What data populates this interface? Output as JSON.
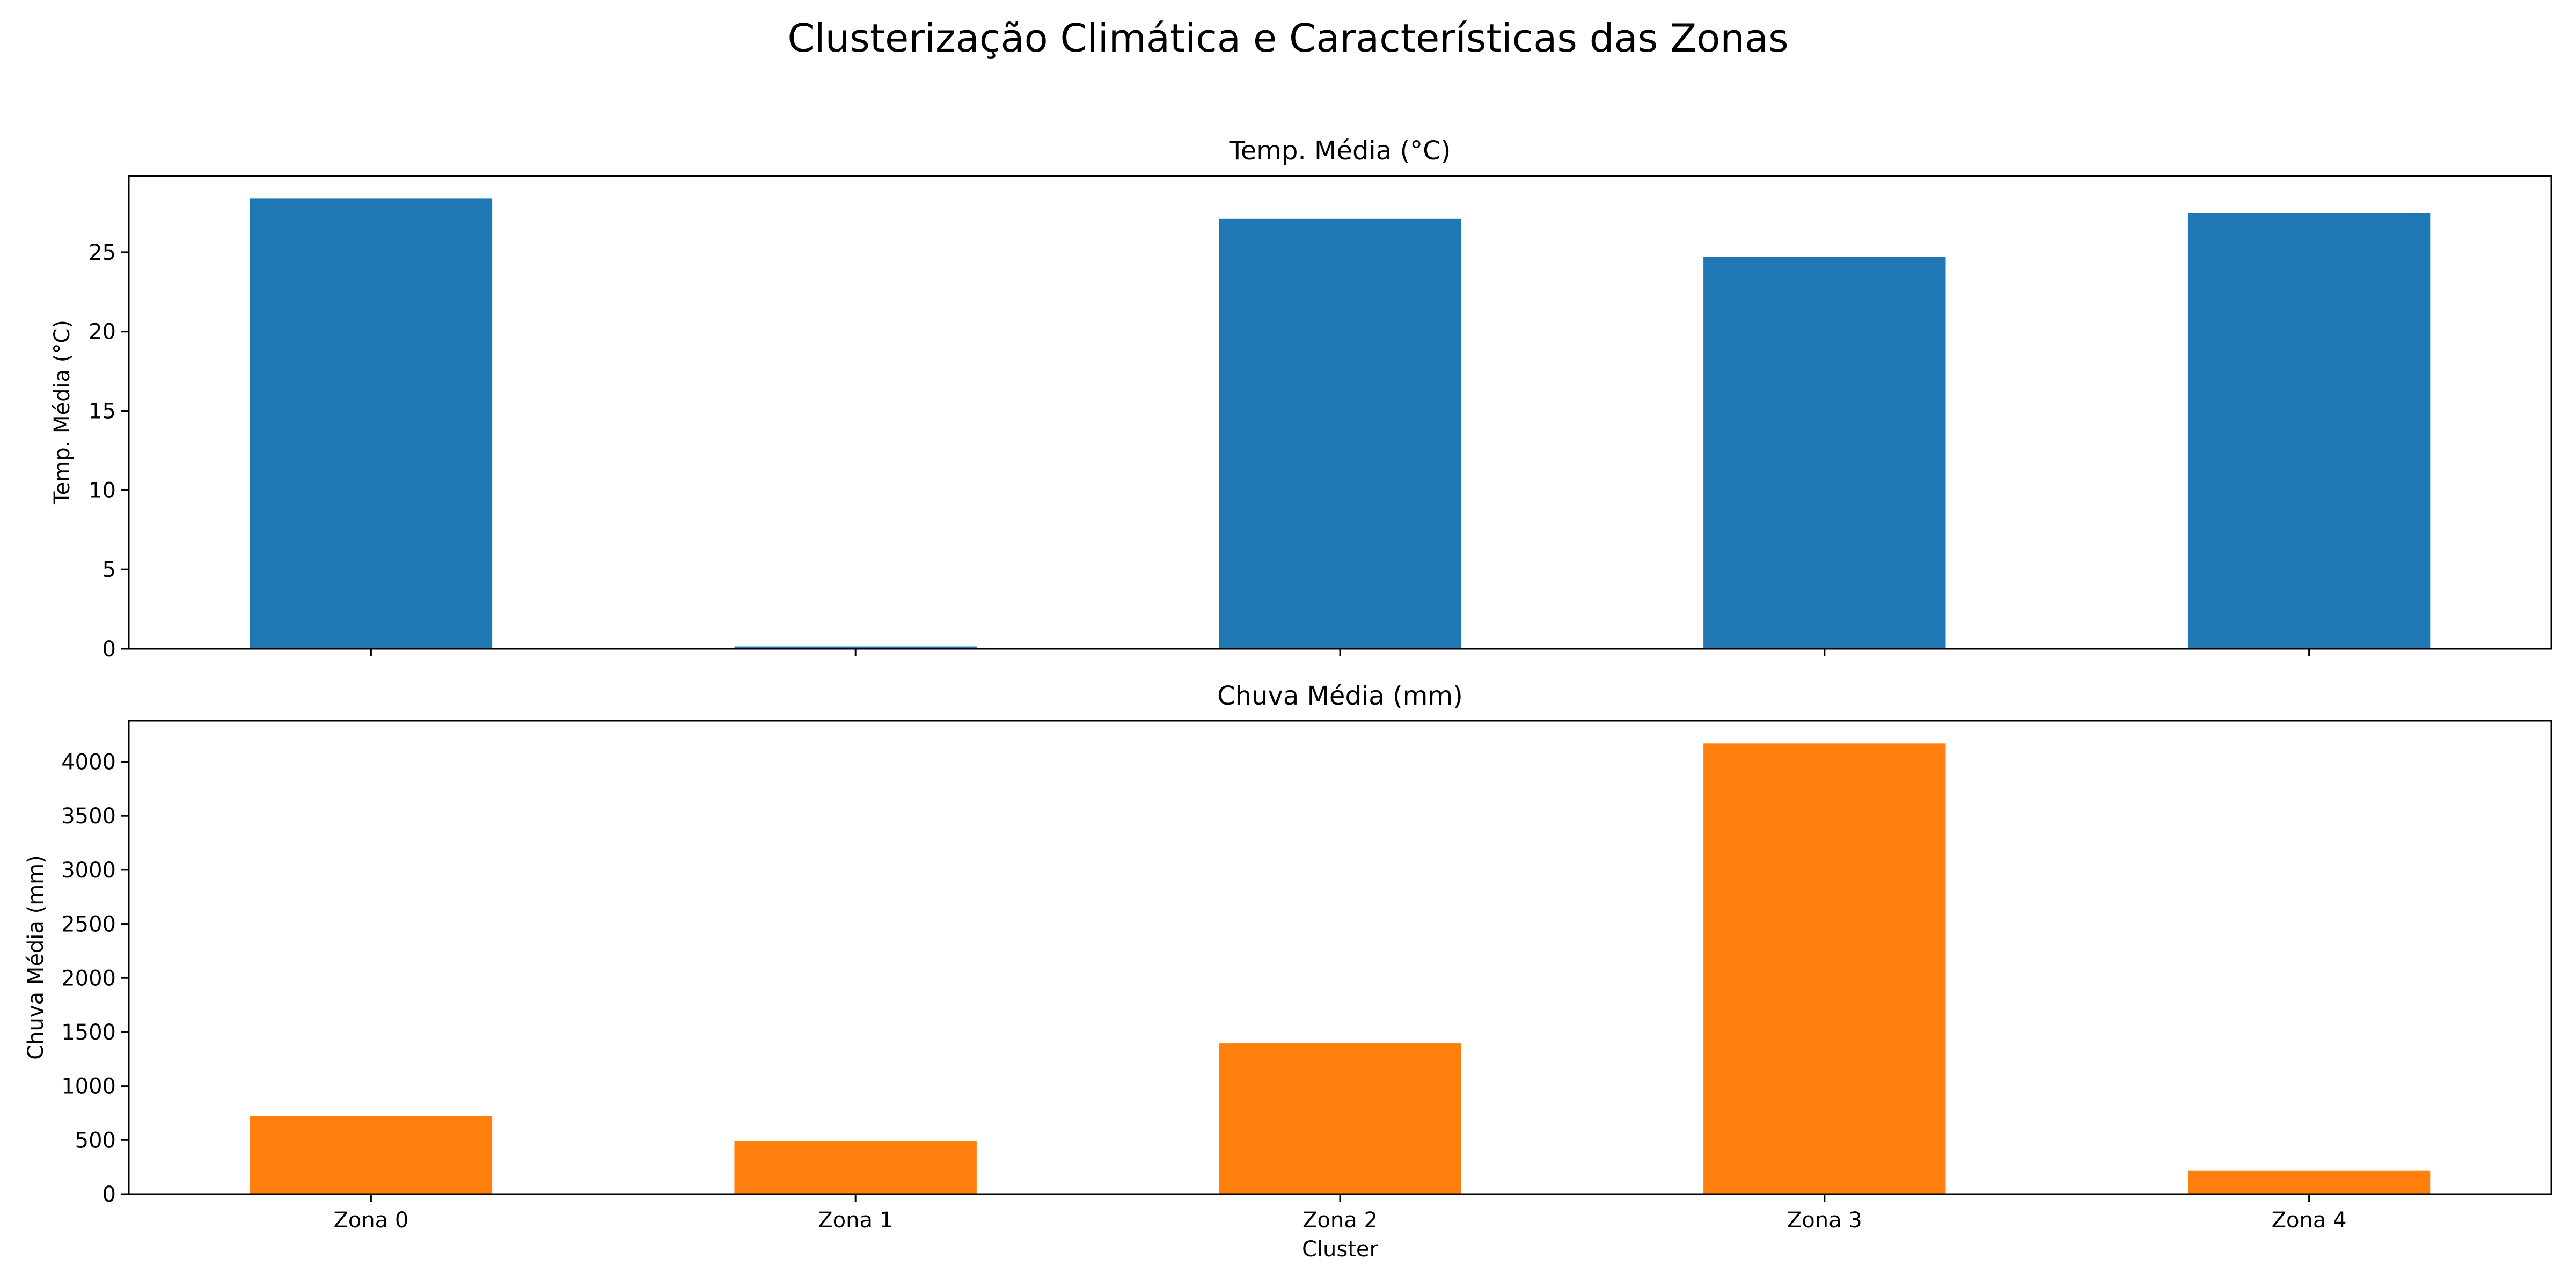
{
  "figure": {
    "title": "Clusterização Climática e Características das Zonas"
  },
  "chart_data": [
    {
      "type": "bar",
      "title": "Temp. Média (°C)",
      "xlabel": "",
      "ylabel": "Temp. Média (°C)",
      "categories": [
        "Zona 0",
        "Zona 1",
        "Zona 2",
        "Zona 3",
        "Zona 4"
      ],
      "show_x_tick_labels": false,
      "values": [
        28.4,
        0.15,
        27.1,
        24.7,
        27.5
      ],
      "ylim": [
        0,
        29.8
      ],
      "yticks": [
        0,
        5,
        10,
        15,
        20,
        25
      ],
      "color": "#1f77b4",
      "grid": false,
      "legend": "none"
    },
    {
      "type": "bar",
      "title": "Chuva Média (mm)",
      "xlabel": "Cluster",
      "ylabel": "Chuva Média (mm)",
      "categories": [
        "Zona 0",
        "Zona 1",
        "Zona 2",
        "Zona 3",
        "Zona 4"
      ],
      "show_x_tick_labels": true,
      "values": [
        720,
        490,
        1395,
        4170,
        215
      ],
      "ylim": [
        0,
        4380
      ],
      "yticks": [
        0,
        500,
        1000,
        1500,
        2000,
        2500,
        3000,
        3500,
        4000
      ],
      "color": "#ff7f0e",
      "grid": false,
      "legend": "none"
    }
  ]
}
